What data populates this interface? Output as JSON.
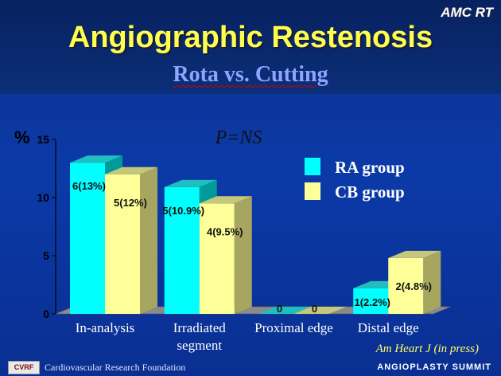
{
  "header": {
    "brand": "AMC RT",
    "title": "Angiographic Restenosis",
    "subtitle": "Rota vs. Cutting"
  },
  "footer": {
    "logo_text": "CVRF",
    "org_name": "Cardiovascular Research Foundation",
    "event": "ANGIOPLASTY SUMMIT",
    "citation": "Am Heart J  (in press)"
  },
  "colors": {
    "ra": "#00ffff",
    "cb": "#ffff99",
    "ra_top": "#1fbfbf",
    "cb_top": "#c7c77a",
    "ra_side": "#009a9a",
    "cb_side": "#a6a660",
    "floor": "#8a8a8a",
    "axis_text": "#000000",
    "ylabel_color": "#000000",
    "pval_color": "#111111"
  },
  "chart_data": {
    "type": "bar",
    "title": "",
    "annotation": "P=NS",
    "ylabel": "%",
    "xlabel": "",
    "ylim": [
      0,
      15
    ],
    "yticks": [
      0,
      5,
      10,
      15
    ],
    "categories": [
      "In-analysis",
      "Irradiated segment",
      "Proximal edge",
      "Distal edge"
    ],
    "series": [
      {
        "name": "RA group",
        "values": [
          13,
          10.9,
          0,
          2.2
        ],
        "labels": [
          "6(13%)",
          "5(10.9%)",
          "0",
          "1(2.2%)"
        ]
      },
      {
        "name": "CB group",
        "values": [
          12,
          9.5,
          0,
          4.8
        ],
        "labels": [
          "5(12%)",
          "4(9.5%)",
          "0",
          "2(4.8%)"
        ]
      }
    ],
    "legend": [
      "RA group",
      "CB group"
    ],
    "legend_position": "top-right",
    "grid": false
  }
}
